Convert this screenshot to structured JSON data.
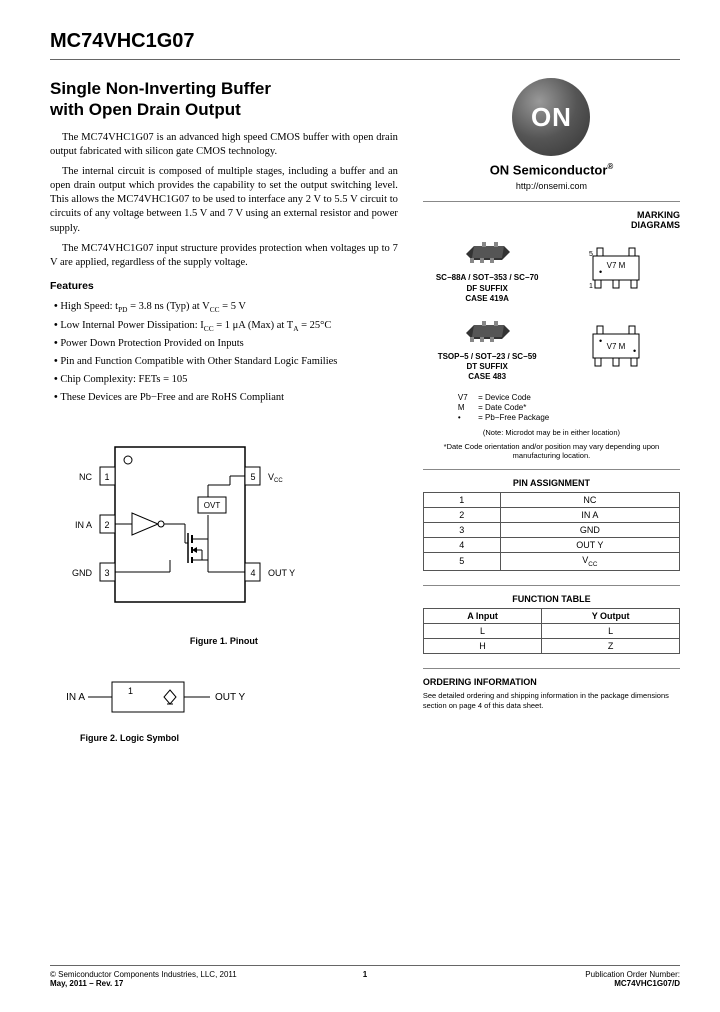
{
  "part_number": "MC74VHC1G07",
  "title_line1": "Single Non-Inverting Buffer",
  "title_line2": "with Open Drain Output",
  "para1": "The MC74VHC1G07 is an advanced high speed CMOS buffer with open drain output fabricated with silicon gate CMOS technology.",
  "para2": "The internal circuit is composed of multiple stages, including a buffer and an open drain output which provides the capability to set the output switching level. This allows the MC74VHC1G07 to be used to interface any 2 V to 5.5 V circuit to circuits of any voltage between 1.5 V and 7 V using an external resistor and power supply.",
  "para3": "The MC74VHC1G07 input structure provides protection when voltages up to 7 V are applied, regardless of the supply voltage.",
  "features_heading": "Features",
  "features": [
    "High Speed: t<sub>PD</sub> = 3.8 ns (Typ) at V<sub>CC</sub> = 5 V",
    "Low Internal Power Dissipation: I<sub>CC</sub> = 1 μA (Max) at T<sub>A</sub> = 25°C",
    "Power Down Protection Provided on Inputs",
    "Pin and Function Compatible with Other Standard Logic Families",
    "Chip Complexity: FETs = 105",
    "These Devices are Pb−Free and are RoHS Compliant"
  ],
  "logo_text": "ON",
  "brand": "ON Semiconductor",
  "url": "http://onsemi.com",
  "marking_heading": "MARKING DIAGRAMS",
  "packages": [
    {
      "name": "SC−88A / SOT−353 / SC−70",
      "suffix": "DF SUFFIX",
      "case": "CASE 419A",
      "mark": "V7 M"
    },
    {
      "name": "TSOP−5 / SOT−23 / SC−59",
      "suffix": "DT SUFFIX",
      "case": "CASE 483",
      "mark": "V7 M"
    }
  ],
  "legend": [
    {
      "k": "V7",
      "v": "= Device Code"
    },
    {
      "k": "M",
      "v": "= Date Code*"
    },
    {
      "k": "•",
      "v": "= Pb−Free Package"
    }
  ],
  "microdot_note": "(Note: Microdot may be in either location)",
  "date_note": "*Date Code orientation and/or position may vary depending upon manufacturing location.",
  "pin_heading": "PIN ASSIGNMENT",
  "pins": [
    {
      "n": "1",
      "name": "NC"
    },
    {
      "n": "2",
      "name": "IN A"
    },
    {
      "n": "3",
      "name": "GND"
    },
    {
      "n": "4",
      "name": "OUT Y"
    },
    {
      "n": "5",
      "name": "V<sub>CC</sub>"
    }
  ],
  "func_heading": "FUNCTION TABLE",
  "func_head": {
    "a": "A Input",
    "y": "Y Output"
  },
  "func_rows": [
    {
      "a": "L",
      "y": "L"
    },
    {
      "a": "H",
      "y": "Z"
    }
  ],
  "order_heading": "ORDERING INFORMATION",
  "order_text": "See detailed ordering and shipping information in the package dimensions section on page 4 of this data sheet.",
  "fig1_caption": "Figure 1. Pinout",
  "fig2_caption": "Figure 2. Logic Symbol",
  "pinout_labels": {
    "p1": "NC",
    "p2": "IN A",
    "p3": "GND",
    "p4": "OUT Y",
    "p5": "V<sub>CC</sub>",
    "ovt": "OVT"
  },
  "logic_labels": {
    "in": "IN A",
    "out": "OUT Y",
    "num": "1"
  },
  "footer": {
    "left1": "© Semiconductor Components Industries, LLC, 2011",
    "left2": "May, 2011 − Rev. 17",
    "page": "1",
    "right1": "Publication Order Number:",
    "right2": "MC74VHC1G07/D"
  }
}
